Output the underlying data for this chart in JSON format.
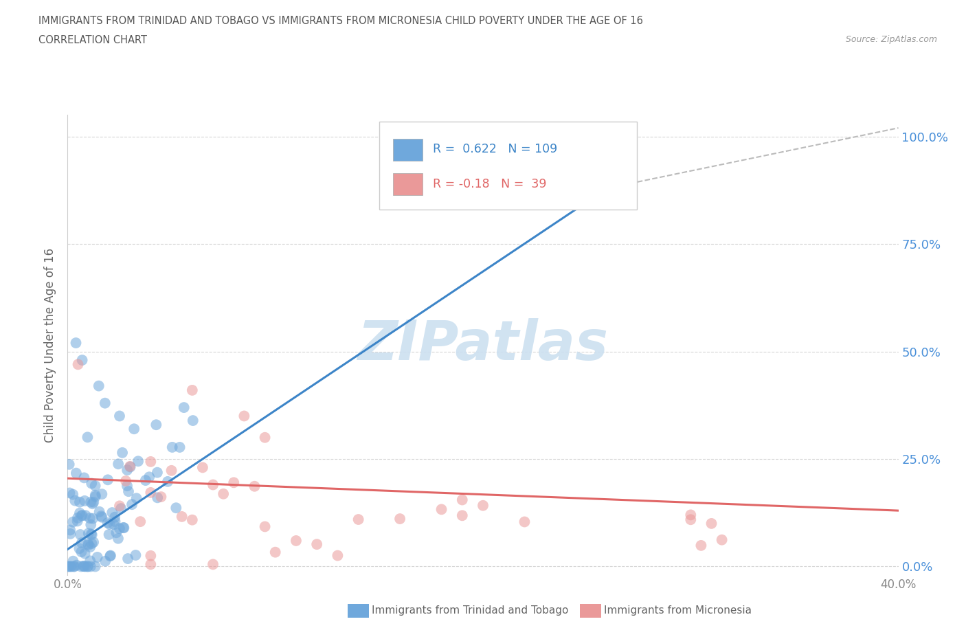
{
  "title": "IMMIGRANTS FROM TRINIDAD AND TOBAGO VS IMMIGRANTS FROM MICRONESIA CHILD POVERTY UNDER THE AGE OF 16",
  "subtitle": "CORRELATION CHART",
  "source": "Source: ZipAtlas.com",
  "ylabel": "Child Poverty Under the Age of 16",
  "xlim": [
    0.0,
    0.4
  ],
  "ylim": [
    -0.02,
    1.05
  ],
  "yticks": [
    0.0,
    0.25,
    0.5,
    0.75,
    1.0
  ],
  "ytick_labels": [
    "0.0%",
    "25.0%",
    "50.0%",
    "75.0%",
    "100.0%"
  ],
  "xtick_left_label": "0.0%",
  "xtick_right_label": "40.0%",
  "trinidad_color": "#6fa8dc",
  "micronesia_color": "#ea9999",
  "trinidad_line_color": "#3d85c8",
  "micronesia_line_color": "#e06666",
  "dash_color": "#bbbbbb",
  "watermark_color": "#cce0f0",
  "R_trinidad": 0.622,
  "N_trinidad": 109,
  "R_micronesia": -0.18,
  "N_micronesia": 39,
  "legend_label_1": "Immigrants from Trinidad and Tobago",
  "legend_label_2": "Immigrants from Micronesia",
  "background_color": "#ffffff",
  "grid_color": "#cccccc",
  "right_tick_color": "#4a90d9"
}
